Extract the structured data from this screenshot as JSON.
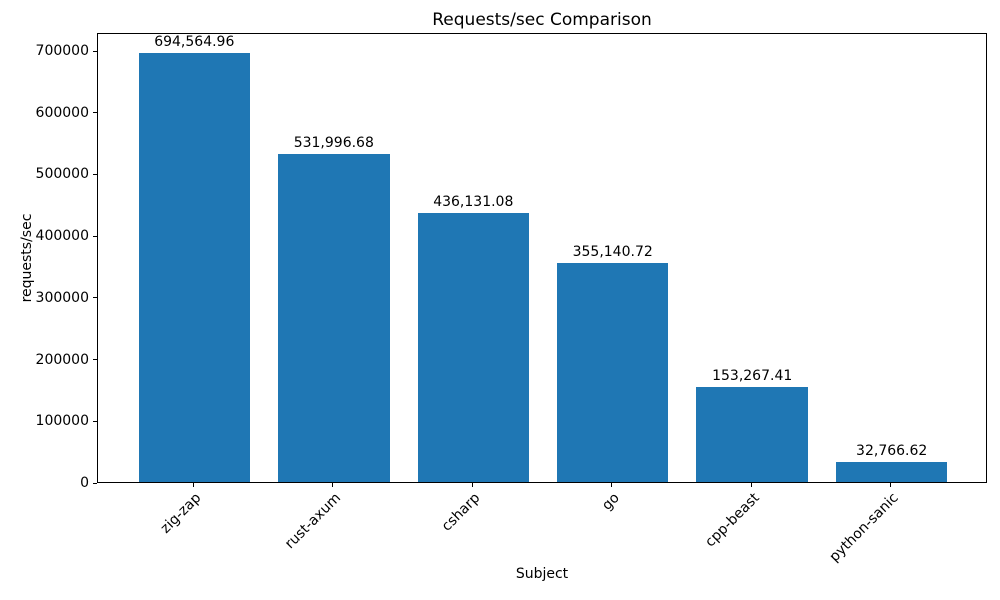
{
  "chart_data": {
    "type": "bar",
    "title": "Requests/sec Comparison",
    "xlabel": "Subject",
    "ylabel": "requests/sec",
    "categories": [
      "zig-zap",
      "rust-axum",
      "csharp",
      "go",
      "cpp-beast",
      "python-sanic"
    ],
    "values": [
      694564.96,
      531996.68,
      436131.08,
      355140.72,
      153267.41,
      32766.62
    ],
    "value_labels": [
      "694,564.96",
      "531,996.68",
      "436,131.08",
      "355,140.72",
      "153,267.41",
      "32,766.62"
    ],
    "y_ticks": [
      0,
      100000,
      200000,
      300000,
      400000,
      500000,
      600000,
      700000
    ],
    "y_tick_labels": [
      "0",
      "100000",
      "200000",
      "300000",
      "400000",
      "500000",
      "600000",
      "700000"
    ],
    "ylim": [
      0,
      729293
    ],
    "xlim": [
      -0.69,
      5.69
    ],
    "bar_width_frac": 0.8,
    "x_tick_rotation_deg": 45,
    "bar_color": "#1f77b4",
    "text_color": "#000000",
    "background_color": "#ffffff",
    "grid": false,
    "legend": "none"
  }
}
